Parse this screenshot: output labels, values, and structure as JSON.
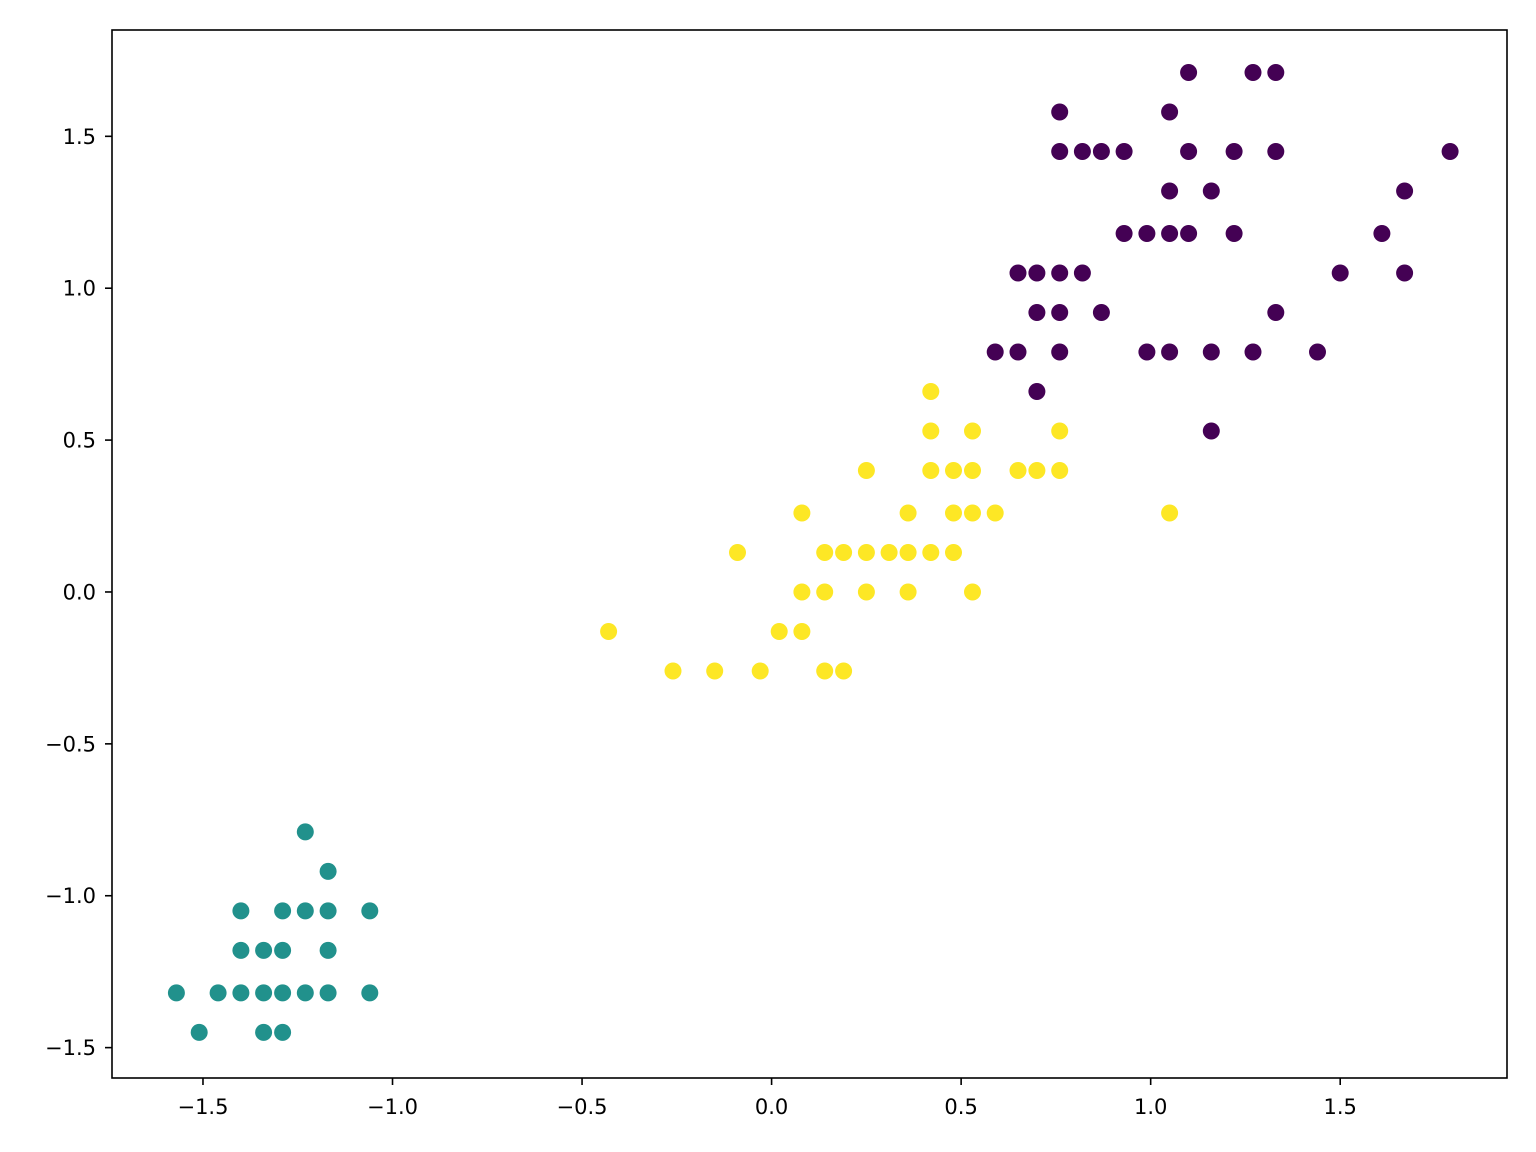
{
  "chart_data": {
    "type": "scatter",
    "title": "",
    "xlabel": "",
    "ylabel": "",
    "xlim": [
      -1.74,
      1.94
    ],
    "ylim": [
      -1.6,
      1.85
    ],
    "grid": false,
    "x_ticks": [
      -1.5,
      -1.0,
      -0.5,
      0.0,
      0.5,
      1.0,
      1.5
    ],
    "y_ticks": [
      -1.5,
      -1.0,
      -0.5,
      0.0,
      0.5,
      1.0,
      1.5
    ],
    "x_tick_labels": [
      "−1.5",
      "−1.0",
      "−0.5",
      "0.0",
      "0.5",
      "1.0",
      "1.5"
    ],
    "y_tick_labels": [
      "−1.5",
      "−1.0",
      "−0.5",
      "0.0",
      "0.5",
      "1.0",
      "1.5"
    ],
    "series": [
      {
        "color": "#440154",
        "points": [
          [
            1.1,
            1.71
          ],
          [
            1.27,
            1.71
          ],
          [
            1.33,
            1.71
          ],
          [
            0.76,
            1.58
          ],
          [
            1.05,
            1.58
          ],
          [
            0.76,
            1.45
          ],
          [
            0.82,
            1.45
          ],
          [
            0.87,
            1.45
          ],
          [
            0.93,
            1.45
          ],
          [
            1.1,
            1.45
          ],
          [
            1.22,
            1.45
          ],
          [
            1.33,
            1.45
          ],
          [
            1.79,
            1.45
          ],
          [
            1.05,
            1.32
          ],
          [
            1.16,
            1.32
          ],
          [
            1.67,
            1.32
          ],
          [
            0.93,
            1.18
          ],
          [
            0.99,
            1.18
          ],
          [
            1.05,
            1.18
          ],
          [
            1.1,
            1.18
          ],
          [
            1.22,
            1.18
          ],
          [
            1.61,
            1.18
          ],
          [
            0.65,
            1.05
          ],
          [
            0.7,
            1.05
          ],
          [
            0.76,
            1.05
          ],
          [
            0.82,
            1.05
          ],
          [
            1.5,
            1.05
          ],
          [
            1.67,
            1.05
          ],
          [
            0.7,
            0.92
          ],
          [
            0.76,
            0.92
          ],
          [
            0.87,
            0.92
          ],
          [
            1.33,
            0.92
          ],
          [
            0.59,
            0.79
          ],
          [
            0.65,
            0.79
          ],
          [
            0.76,
            0.79
          ],
          [
            0.99,
            0.79
          ],
          [
            1.05,
            0.79
          ],
          [
            1.16,
            0.79
          ],
          [
            1.27,
            0.79
          ],
          [
            1.44,
            0.79
          ],
          [
            0.7,
            0.66
          ],
          [
            1.16,
            0.53
          ]
        ]
      },
      {
        "color": "#fde725",
        "points": [
          [
            0.42,
            0.66
          ],
          [
            0.42,
            0.53
          ],
          [
            0.53,
            0.53
          ],
          [
            0.76,
            0.53
          ],
          [
            0.25,
            0.4
          ],
          [
            0.42,
            0.4
          ],
          [
            0.48,
            0.4
          ],
          [
            0.53,
            0.4
          ],
          [
            0.65,
            0.4
          ],
          [
            0.7,
            0.4
          ],
          [
            0.76,
            0.4
          ],
          [
            0.08,
            0.26
          ],
          [
            0.36,
            0.26
          ],
          [
            0.48,
            0.26
          ],
          [
            0.53,
            0.26
          ],
          [
            0.59,
            0.26
          ],
          [
            1.05,
            0.26
          ],
          [
            -0.09,
            0.13
          ],
          [
            0.14,
            0.13
          ],
          [
            0.19,
            0.13
          ],
          [
            0.25,
            0.13
          ],
          [
            0.31,
            0.13
          ],
          [
            0.36,
            0.13
          ],
          [
            0.42,
            0.13
          ],
          [
            0.48,
            0.13
          ],
          [
            0.08,
            0.0
          ],
          [
            0.14,
            0.0
          ],
          [
            0.25,
            0.0
          ],
          [
            0.36,
            0.0
          ],
          [
            0.53,
            0.0
          ],
          [
            -0.43,
            -0.13
          ],
          [
            0.02,
            -0.13
          ],
          [
            0.08,
            -0.13
          ],
          [
            -0.26,
            -0.26
          ],
          [
            -0.15,
            -0.26
          ],
          [
            -0.03,
            -0.26
          ],
          [
            0.14,
            -0.26
          ],
          [
            0.19,
            -0.26
          ]
        ]
      },
      {
        "color": "#21918c",
        "points": [
          [
            -1.23,
            -0.79
          ],
          [
            -1.17,
            -0.92
          ],
          [
            -1.4,
            -1.05
          ],
          [
            -1.29,
            -1.05
          ],
          [
            -1.23,
            -1.05
          ],
          [
            -1.17,
            -1.05
          ],
          [
            -1.06,
            -1.05
          ],
          [
            -1.4,
            -1.18
          ],
          [
            -1.34,
            -1.18
          ],
          [
            -1.29,
            -1.18
          ],
          [
            -1.17,
            -1.18
          ],
          [
            -1.57,
            -1.32
          ],
          [
            -1.46,
            -1.32
          ],
          [
            -1.4,
            -1.32
          ],
          [
            -1.34,
            -1.32
          ],
          [
            -1.29,
            -1.32
          ],
          [
            -1.23,
            -1.32
          ],
          [
            -1.17,
            -1.32
          ],
          [
            -1.06,
            -1.32
          ],
          [
            -1.51,
            -1.45
          ],
          [
            -1.34,
            -1.45
          ],
          [
            -1.29,
            -1.45
          ]
        ]
      }
    ]
  }
}
